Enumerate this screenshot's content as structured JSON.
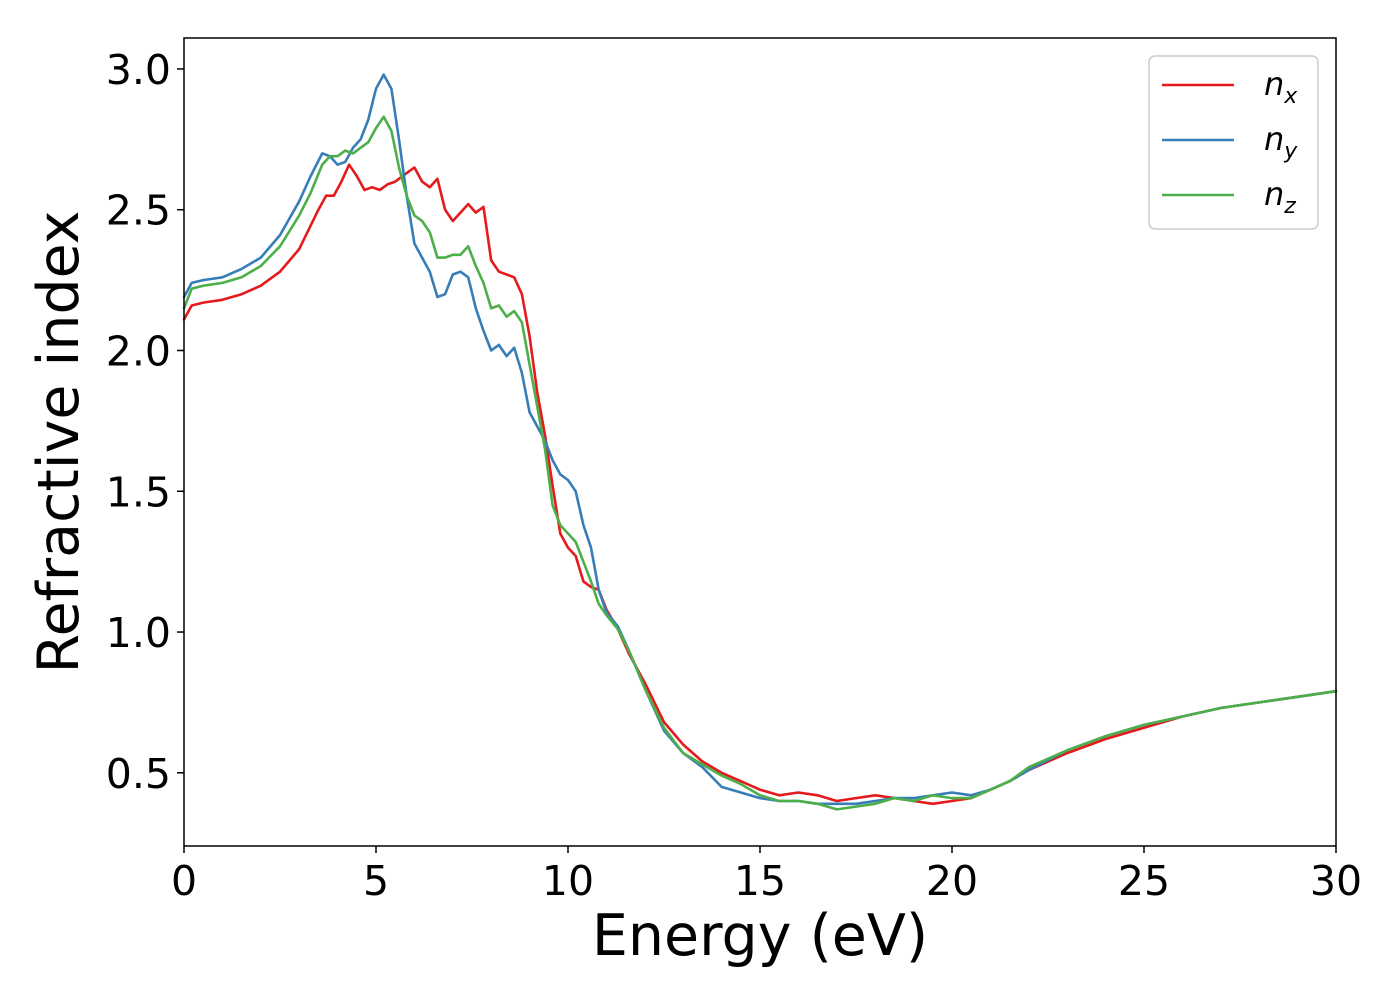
{
  "chart_data": {
    "type": "line",
    "title": "",
    "xlabel": "Energy (eV)",
    "ylabel": "Refractive index",
    "xlim": [
      0,
      30
    ],
    "ylim": [
      0.24,
      3.11
    ],
    "xticks": [
      0,
      5,
      10,
      15,
      20,
      25,
      30
    ],
    "yticks": [
      0.5,
      1.0,
      1.5,
      2.0,
      2.5,
      3.0
    ],
    "xtick_labels": [
      "0",
      "5",
      "10",
      "15",
      "20",
      "25",
      "30"
    ],
    "ytick_labels": [
      "0.5",
      "1.0",
      "1.5",
      "2.0",
      "2.5",
      "3.0"
    ],
    "grid": false,
    "legend_position": "top-right",
    "series": [
      {
        "name": "n_x",
        "label_main": "n",
        "label_sub": "x",
        "color": "#e41a1c",
        "points": [
          [
            0,
            2.11
          ],
          [
            0.2,
            2.16
          ],
          [
            0.5,
            2.17
          ],
          [
            1,
            2.18
          ],
          [
            1.5,
            2.2
          ],
          [
            2,
            2.23
          ],
          [
            2.5,
            2.28
          ],
          [
            3,
            2.36
          ],
          [
            3.5,
            2.5
          ],
          [
            3.7,
            2.55
          ],
          [
            3.9,
            2.55
          ],
          [
            4.1,
            2.6
          ],
          [
            4.3,
            2.66
          ],
          [
            4.5,
            2.62
          ],
          [
            4.7,
            2.57
          ],
          [
            4.9,
            2.58
          ],
          [
            5.1,
            2.57
          ],
          [
            5.3,
            2.59
          ],
          [
            5.5,
            2.6
          ],
          [
            5.8,
            2.63
          ],
          [
            6.0,
            2.65
          ],
          [
            6.2,
            2.6
          ],
          [
            6.4,
            2.58
          ],
          [
            6.6,
            2.61
          ],
          [
            6.8,
            2.5
          ],
          [
            7.0,
            2.46
          ],
          [
            7.2,
            2.49
          ],
          [
            7.4,
            2.52
          ],
          [
            7.6,
            2.49
          ],
          [
            7.8,
            2.51
          ],
          [
            8.0,
            2.32
          ],
          [
            8.2,
            2.28
          ],
          [
            8.4,
            2.27
          ],
          [
            8.6,
            2.26
          ],
          [
            8.8,
            2.2
          ],
          [
            9.0,
            2.05
          ],
          [
            9.2,
            1.85
          ],
          [
            9.4,
            1.7
          ],
          [
            9.6,
            1.52
          ],
          [
            9.8,
            1.35
          ],
          [
            10.0,
            1.3
          ],
          [
            10.2,
            1.27
          ],
          [
            10.4,
            1.18
          ],
          [
            10.6,
            1.16
          ],
          [
            10.8,
            1.15
          ],
          [
            11.0,
            1.08
          ],
          [
            11.3,
            1.01
          ],
          [
            11.6,
            0.92
          ],
          [
            12.0,
            0.82
          ],
          [
            12.5,
            0.68
          ],
          [
            13.0,
            0.6
          ],
          [
            13.5,
            0.54
          ],
          [
            14.0,
            0.5
          ],
          [
            14.5,
            0.47
          ],
          [
            15.0,
            0.44
          ],
          [
            15.5,
            0.42
          ],
          [
            16.0,
            0.43
          ],
          [
            16.5,
            0.42
          ],
          [
            17.0,
            0.4
          ],
          [
            17.5,
            0.41
          ],
          [
            18.0,
            0.42
          ],
          [
            18.5,
            0.41
          ],
          [
            19.0,
            0.4
          ],
          [
            19.5,
            0.39
          ],
          [
            20.0,
            0.4
          ],
          [
            20.5,
            0.41
          ],
          [
            21.0,
            0.44
          ],
          [
            21.5,
            0.47
          ],
          [
            22.0,
            0.51
          ],
          [
            23.0,
            0.57
          ],
          [
            24.0,
            0.62
          ],
          [
            25.0,
            0.66
          ],
          [
            26.0,
            0.7
          ],
          [
            27.0,
            0.73
          ],
          [
            28.0,
            0.75
          ],
          [
            29.0,
            0.77
          ],
          [
            30.0,
            0.79
          ]
        ]
      },
      {
        "name": "n_y",
        "label_main": "n",
        "label_sub": "y",
        "color": "#377eb8",
        "points": [
          [
            0,
            2.19
          ],
          [
            0.2,
            2.24
          ],
          [
            0.5,
            2.25
          ],
          [
            1,
            2.26
          ],
          [
            1.5,
            2.29
          ],
          [
            2,
            2.33
          ],
          [
            2.5,
            2.41
          ],
          [
            3,
            2.53
          ],
          [
            3.3,
            2.62
          ],
          [
            3.6,
            2.7
          ],
          [
            3.8,
            2.69
          ],
          [
            4.0,
            2.66
          ],
          [
            4.2,
            2.67
          ],
          [
            4.4,
            2.72
          ],
          [
            4.6,
            2.75
          ],
          [
            4.8,
            2.82
          ],
          [
            5.0,
            2.93
          ],
          [
            5.2,
            2.98
          ],
          [
            5.4,
            2.93
          ],
          [
            5.6,
            2.75
          ],
          [
            5.8,
            2.55
          ],
          [
            6.0,
            2.38
          ],
          [
            6.2,
            2.33
          ],
          [
            6.4,
            2.28
          ],
          [
            6.6,
            2.19
          ],
          [
            6.8,
            2.2
          ],
          [
            7.0,
            2.27
          ],
          [
            7.2,
            2.28
          ],
          [
            7.4,
            2.26
          ],
          [
            7.6,
            2.15
          ],
          [
            7.8,
            2.07
          ],
          [
            8.0,
            2.0
          ],
          [
            8.2,
            2.02
          ],
          [
            8.4,
            1.98
          ],
          [
            8.6,
            2.01
          ],
          [
            8.8,
            1.92
          ],
          [
            9.0,
            1.78
          ],
          [
            9.2,
            1.73
          ],
          [
            9.4,
            1.68
          ],
          [
            9.6,
            1.61
          ],
          [
            9.8,
            1.56
          ],
          [
            10.0,
            1.54
          ],
          [
            10.2,
            1.5
          ],
          [
            10.4,
            1.38
          ],
          [
            10.6,
            1.3
          ],
          [
            10.8,
            1.15
          ],
          [
            11.0,
            1.07
          ],
          [
            11.3,
            1.02
          ],
          [
            11.6,
            0.93
          ],
          [
            12.0,
            0.8
          ],
          [
            12.5,
            0.65
          ],
          [
            13.0,
            0.57
          ],
          [
            13.5,
            0.52
          ],
          [
            14.0,
            0.45
          ],
          [
            14.5,
            0.43
          ],
          [
            15.0,
            0.41
          ],
          [
            15.5,
            0.4
          ],
          [
            16.0,
            0.4
          ],
          [
            16.5,
            0.39
          ],
          [
            17.0,
            0.39
          ],
          [
            17.5,
            0.39
          ],
          [
            18.0,
            0.4
          ],
          [
            18.5,
            0.41
          ],
          [
            19.0,
            0.41
          ],
          [
            19.5,
            0.42
          ],
          [
            20.0,
            0.43
          ],
          [
            20.5,
            0.42
          ],
          [
            21.0,
            0.44
          ],
          [
            21.5,
            0.47
          ],
          [
            22.0,
            0.51
          ],
          [
            23.0,
            0.58
          ],
          [
            24.0,
            0.63
          ],
          [
            25.0,
            0.67
          ],
          [
            26.0,
            0.7
          ],
          [
            27.0,
            0.73
          ],
          [
            28.0,
            0.75
          ],
          [
            29.0,
            0.77
          ],
          [
            30.0,
            0.79
          ]
        ]
      },
      {
        "name": "n_z",
        "label_main": "n",
        "label_sub": "z",
        "color": "#4daf4a",
        "points": [
          [
            0,
            2.15
          ],
          [
            0.2,
            2.22
          ],
          [
            0.5,
            2.23
          ],
          [
            1,
            2.24
          ],
          [
            1.5,
            2.26
          ],
          [
            2,
            2.3
          ],
          [
            2.5,
            2.37
          ],
          [
            3,
            2.48
          ],
          [
            3.3,
            2.56
          ],
          [
            3.6,
            2.66
          ],
          [
            3.8,
            2.69
          ],
          [
            4.0,
            2.69
          ],
          [
            4.2,
            2.71
          ],
          [
            4.4,
            2.7
          ],
          [
            4.6,
            2.72
          ],
          [
            4.8,
            2.74
          ],
          [
            5.0,
            2.79
          ],
          [
            5.2,
            2.83
          ],
          [
            5.4,
            2.78
          ],
          [
            5.6,
            2.65
          ],
          [
            5.8,
            2.55
          ],
          [
            6.0,
            2.48
          ],
          [
            6.2,
            2.46
          ],
          [
            6.4,
            2.42
          ],
          [
            6.6,
            2.33
          ],
          [
            6.8,
            2.33
          ],
          [
            7.0,
            2.34
          ],
          [
            7.2,
            2.34
          ],
          [
            7.4,
            2.37
          ],
          [
            7.6,
            2.3
          ],
          [
            7.8,
            2.24
          ],
          [
            8.0,
            2.15
          ],
          [
            8.2,
            2.16
          ],
          [
            8.4,
            2.12
          ],
          [
            8.6,
            2.14
          ],
          [
            8.8,
            2.1
          ],
          [
            9.0,
            1.95
          ],
          [
            9.2,
            1.8
          ],
          [
            9.4,
            1.65
          ],
          [
            9.6,
            1.45
          ],
          [
            9.8,
            1.38
          ],
          [
            10.0,
            1.35
          ],
          [
            10.2,
            1.32
          ],
          [
            10.4,
            1.25
          ],
          [
            10.6,
            1.18
          ],
          [
            10.8,
            1.1
          ],
          [
            11.0,
            1.06
          ],
          [
            11.3,
            1.01
          ],
          [
            11.6,
            0.93
          ],
          [
            12.0,
            0.8
          ],
          [
            12.5,
            0.66
          ],
          [
            13.0,
            0.57
          ],
          [
            13.5,
            0.53
          ],
          [
            14.0,
            0.49
          ],
          [
            14.5,
            0.46
          ],
          [
            15.0,
            0.42
          ],
          [
            15.5,
            0.4
          ],
          [
            16.0,
            0.4
          ],
          [
            16.5,
            0.39
          ],
          [
            17.0,
            0.37
          ],
          [
            17.5,
            0.38
          ],
          [
            18.0,
            0.39
          ],
          [
            18.5,
            0.41
          ],
          [
            19.0,
            0.4
          ],
          [
            19.5,
            0.42
          ],
          [
            20.0,
            0.41
          ],
          [
            20.5,
            0.41
          ],
          [
            21.0,
            0.44
          ],
          [
            21.5,
            0.47
          ],
          [
            22.0,
            0.52
          ],
          [
            23.0,
            0.58
          ],
          [
            24.0,
            0.63
          ],
          [
            25.0,
            0.67
          ],
          [
            26.0,
            0.7
          ],
          [
            27.0,
            0.73
          ],
          [
            28.0,
            0.75
          ],
          [
            29.0,
            0.77
          ],
          [
            30.0,
            0.79
          ]
        ]
      }
    ]
  }
}
